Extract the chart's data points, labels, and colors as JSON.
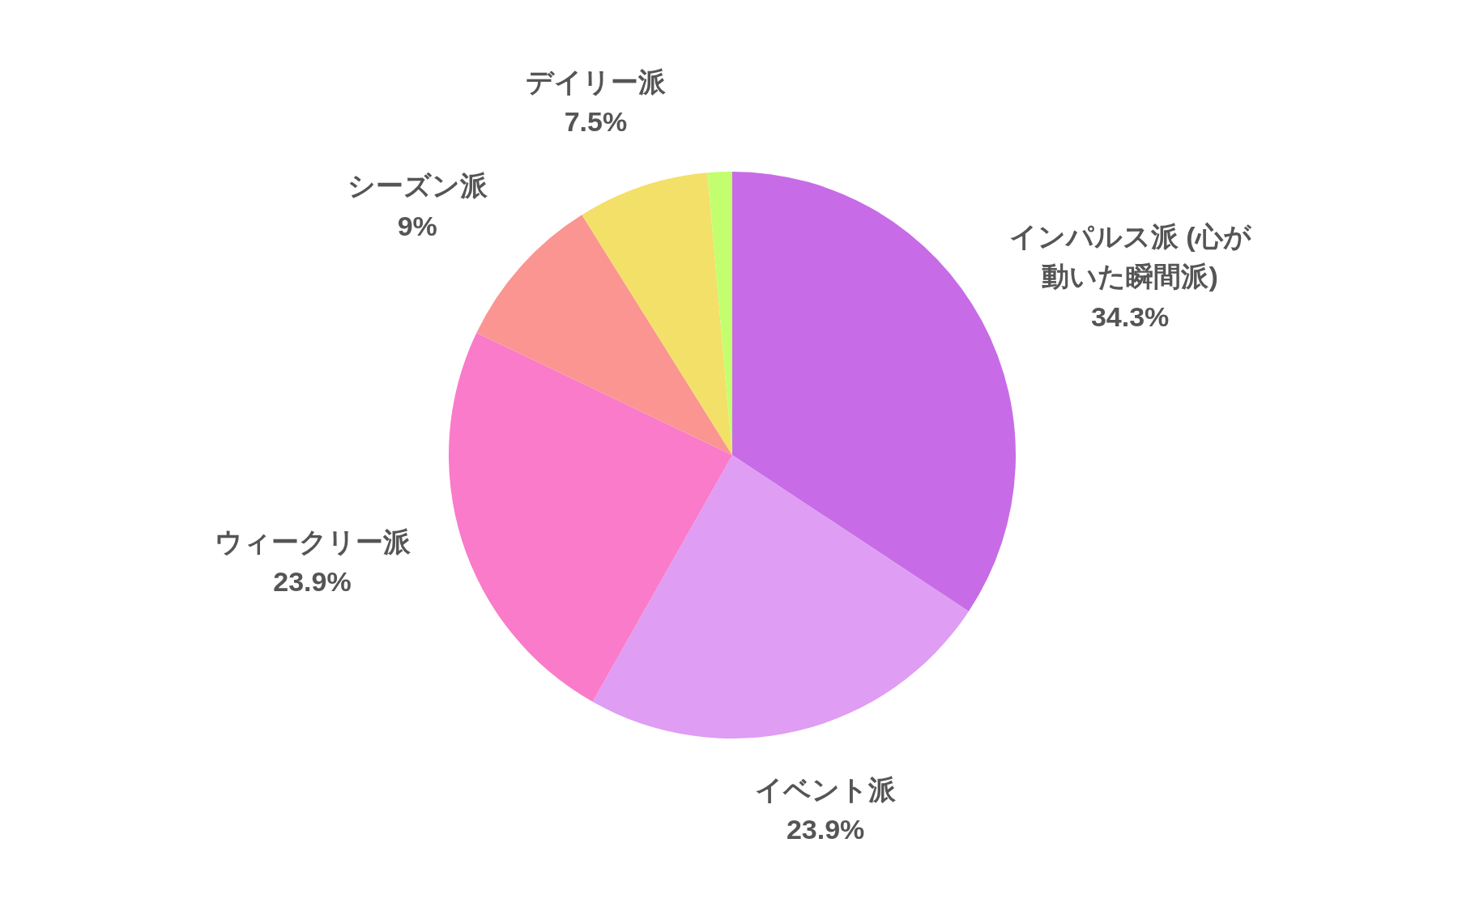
{
  "chart_data": {
    "type": "pie",
    "categories": [
      "インパルス派 (心が動いた瞬間派)",
      "イベント派",
      "ウィークリー派",
      "シーズン派",
      "デイリー派",
      null
    ],
    "values": [
      34.3,
      23.9,
      23.9,
      9,
      7.5,
      1.4
    ],
    "value_labels": [
      "34.3%",
      "23.9%",
      "23.9%",
      "9%",
      "7.5%",
      null
    ],
    "colors": [
      "#c76ce6",
      "#df9df3",
      "#f97bc9",
      "#fb9591",
      "#f3e068",
      "#c3fe6f"
    ]
  }
}
